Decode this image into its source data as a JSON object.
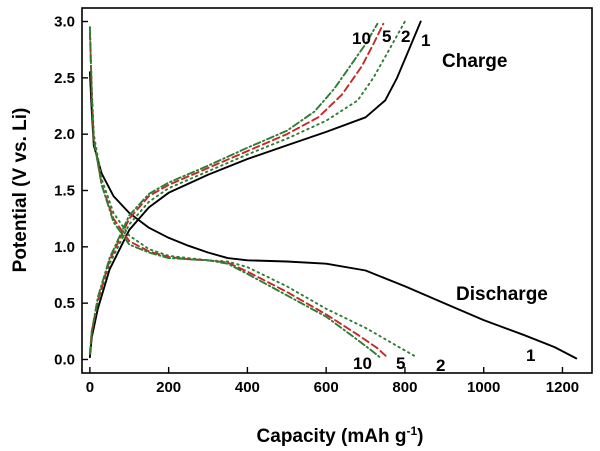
{
  "chart_data": {
    "type": "line",
    "xlabel": "Capacity (mAh g",
    "xlabel_sup": "-1",
    "xlabel_close": ")",
    "ylabel": "Potential (V vs. Li)",
    "xlim": [
      -20,
      1275
    ],
    "ylim": [
      -0.12,
      3.12
    ],
    "xticks": [
      0,
      200,
      400,
      600,
      800,
      1000,
      1200
    ],
    "yticks": [
      0.0,
      0.5,
      1.0,
      1.5,
      2.0,
      2.5,
      3.0
    ],
    "xtick_labels": [
      "0",
      "200",
      "400",
      "600",
      "800",
      "1000",
      "1200"
    ],
    "ytick_labels": [
      "0.0",
      "0.5",
      "1.0",
      "1.5",
      "2.0",
      "2.5",
      "3.0"
    ],
    "annotations": {
      "charge": "Charge",
      "discharge": "Discharge"
    },
    "charge_cycle_labels": [
      "10",
      "5",
      "2",
      "1"
    ],
    "discharge_cycle_labels": [
      "10",
      "5",
      "2",
      "1"
    ],
    "series": [
      {
        "name": "1",
        "color": "#000000",
        "dash": "solid",
        "discharge": [
          [
            0,
            2.55
          ],
          [
            5,
            2.2
          ],
          [
            10,
            1.9
          ],
          [
            30,
            1.65
          ],
          [
            60,
            1.45
          ],
          [
            100,
            1.3
          ],
          [
            150,
            1.17
          ],
          [
            200,
            1.08
          ],
          [
            250,
            1.01
          ],
          [
            300,
            0.95
          ],
          [
            350,
            0.9
          ],
          [
            400,
            0.88
          ],
          [
            500,
            0.87
          ],
          [
            600,
            0.85
          ],
          [
            700,
            0.79
          ],
          [
            800,
            0.65
          ],
          [
            900,
            0.5
          ],
          [
            1000,
            0.35
          ],
          [
            1100,
            0.22
          ],
          [
            1180,
            0.11
          ],
          [
            1235,
            0.01
          ]
        ],
        "charge": [
          [
            0,
            0.02
          ],
          [
            5,
            0.2
          ],
          [
            20,
            0.45
          ],
          [
            50,
            0.8
          ],
          [
            100,
            1.15
          ],
          [
            150,
            1.35
          ],
          [
            200,
            1.48
          ],
          [
            300,
            1.64
          ],
          [
            400,
            1.78
          ],
          [
            500,
            1.9
          ],
          [
            600,
            2.02
          ],
          [
            700,
            2.15
          ],
          [
            750,
            2.3
          ],
          [
            780,
            2.5
          ],
          [
            810,
            2.75
          ],
          [
            840,
            3.0
          ]
        ]
      },
      {
        "name": "2",
        "color": "#2e7d32",
        "dash": "dotted",
        "discharge": [
          [
            0,
            2.95
          ],
          [
            5,
            2.4
          ],
          [
            10,
            2.0
          ],
          [
            30,
            1.6
          ],
          [
            60,
            1.3
          ],
          [
            100,
            1.1
          ],
          [
            150,
            0.98
          ],
          [
            200,
            0.92
          ],
          [
            250,
            0.9
          ],
          [
            300,
            0.88
          ],
          [
            350,
            0.87
          ],
          [
            400,
            0.82
          ],
          [
            500,
            0.65
          ],
          [
            600,
            0.45
          ],
          [
            700,
            0.28
          ],
          [
            780,
            0.12
          ],
          [
            825,
            0.03
          ]
        ],
        "charge": [
          [
            0,
            0.05
          ],
          [
            5,
            0.25
          ],
          [
            20,
            0.5
          ],
          [
            50,
            0.85
          ],
          [
            100,
            1.2
          ],
          [
            150,
            1.4
          ],
          [
            200,
            1.52
          ],
          [
            300,
            1.67
          ],
          [
            400,
            1.82
          ],
          [
            500,
            1.96
          ],
          [
            600,
            2.12
          ],
          [
            680,
            2.3
          ],
          [
            720,
            2.5
          ],
          [
            760,
            2.75
          ],
          [
            800,
            3.0
          ]
        ]
      },
      {
        "name": "5",
        "color": "#c62828",
        "dash": "dashed",
        "discharge": [
          [
            0,
            2.9
          ],
          [
            5,
            2.35
          ],
          [
            10,
            1.95
          ],
          [
            30,
            1.55
          ],
          [
            60,
            1.25
          ],
          [
            100,
            1.05
          ],
          [
            150,
            0.96
          ],
          [
            200,
            0.91
          ],
          [
            250,
            0.89
          ],
          [
            300,
            0.88
          ],
          [
            350,
            0.86
          ],
          [
            400,
            0.78
          ],
          [
            500,
            0.6
          ],
          [
            600,
            0.4
          ],
          [
            680,
            0.22
          ],
          [
            730,
            0.1
          ],
          [
            755,
            0.02
          ]
        ],
        "charge": [
          [
            0,
            0.05
          ],
          [
            5,
            0.25
          ],
          [
            20,
            0.52
          ],
          [
            50,
            0.88
          ],
          [
            100,
            1.25
          ],
          [
            150,
            1.45
          ],
          [
            200,
            1.55
          ],
          [
            300,
            1.7
          ],
          [
            400,
            1.85
          ],
          [
            500,
            2.0
          ],
          [
            580,
            2.15
          ],
          [
            640,
            2.35
          ],
          [
            690,
            2.6
          ],
          [
            720,
            2.8
          ],
          [
            745,
            2.98
          ]
        ]
      },
      {
        "name": "10",
        "color": "#2e7d32",
        "dash": "dashdot",
        "discharge": [
          [
            0,
            2.95
          ],
          [
            5,
            2.35
          ],
          [
            10,
            1.95
          ],
          [
            30,
            1.55
          ],
          [
            60,
            1.22
          ],
          [
            100,
            1.02
          ],
          [
            150,
            0.95
          ],
          [
            200,
            0.9
          ],
          [
            250,
            0.89
          ],
          [
            300,
            0.88
          ],
          [
            350,
            0.85
          ],
          [
            400,
            0.76
          ],
          [
            500,
            0.57
          ],
          [
            600,
            0.38
          ],
          [
            670,
            0.2
          ],
          [
            715,
            0.08
          ],
          [
            740,
            0.01
          ]
        ],
        "charge": [
          [
            0,
            0.05
          ],
          [
            5,
            0.25
          ],
          [
            20,
            0.55
          ],
          [
            50,
            0.9
          ],
          [
            100,
            1.28
          ],
          [
            150,
            1.47
          ],
          [
            200,
            1.57
          ],
          [
            300,
            1.72
          ],
          [
            400,
            1.88
          ],
          [
            500,
            2.03
          ],
          [
            570,
            2.2
          ],
          [
            620,
            2.4
          ],
          [
            660,
            2.6
          ],
          [
            700,
            2.8
          ],
          [
            730,
            2.98
          ]
        ]
      }
    ]
  }
}
